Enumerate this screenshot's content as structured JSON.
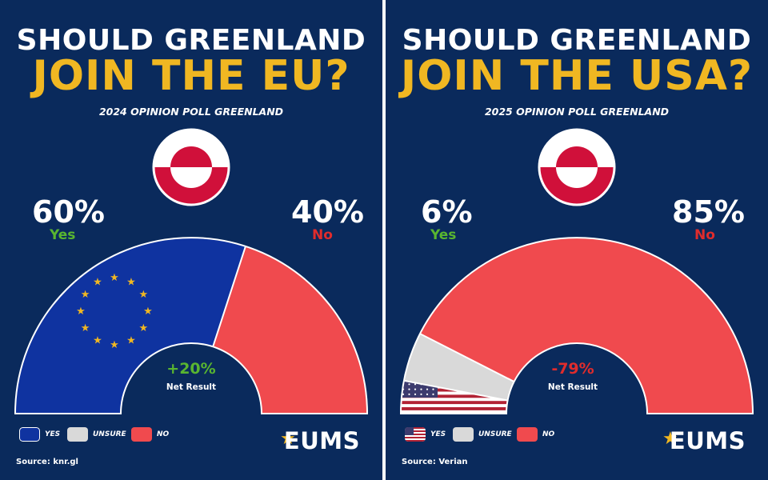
{
  "colors": {
    "background": "#0a2a5c",
    "yes_eu": "#0f33a0",
    "unsure": "#d9d9d9",
    "no": "#f04a4e",
    "title_accent": "#f0b722",
    "yes_text": "#59b530",
    "no_text": "#e02c2c",
    "eu_star": "#f0b722"
  },
  "chart_data": [
    {
      "type": "pie",
      "style": "semicircle-gauge",
      "title_line1": "SHOULD GREENLAND",
      "title_line2": "JOIN THE EU?",
      "subtitle": "2024 OPINION POLL GREENLAND",
      "yes_pct_text": "60%",
      "yes_text": "Yes",
      "no_pct_text": "40%",
      "no_text": "No",
      "segments": [
        {
          "label": "YES",
          "value": 60,
          "fill": "eu-flag"
        },
        {
          "label": "UNSURE",
          "value": 0,
          "fill": "grey"
        },
        {
          "label": "NO",
          "value": 40,
          "fill": "red"
        }
      ],
      "net_result": "+20%",
      "net_result_color": "#59b530",
      "net_label": "Net Result",
      "legend": [
        {
          "label": "YES",
          "swatch": "eu-flag"
        },
        {
          "label": "UNSURE",
          "swatch": "grey"
        },
        {
          "label": "NO",
          "swatch": "red"
        }
      ],
      "legend_placement": "bottom-left",
      "brand": "EUMS",
      "source": "Source: knr.gl"
    },
    {
      "type": "pie",
      "style": "semicircle-gauge",
      "title_line1": "SHOULD GREENLAND",
      "title_line2": "JOIN THE USA?",
      "subtitle": "2025 OPINION POLL GREENLAND",
      "yes_pct_text": "6%",
      "yes_text": "Yes",
      "no_pct_text": "85%",
      "no_text": "No",
      "segments": [
        {
          "label": "YES",
          "value": 6,
          "fill": "us-flag"
        },
        {
          "label": "UNSURE",
          "value": 9,
          "fill": "grey"
        },
        {
          "label": "NO",
          "value": 85,
          "fill": "red"
        }
      ],
      "net_result": "-79%",
      "net_result_color": "#e02c2c",
      "net_label": "Net Result",
      "legend": [
        {
          "label": "YES",
          "swatch": "us-flag"
        },
        {
          "label": "UNSURE",
          "swatch": "grey"
        },
        {
          "label": "NO",
          "swatch": "red"
        }
      ],
      "legend_placement": "bottom-left",
      "brand": "EUMS",
      "source": "Source: Verian"
    }
  ]
}
